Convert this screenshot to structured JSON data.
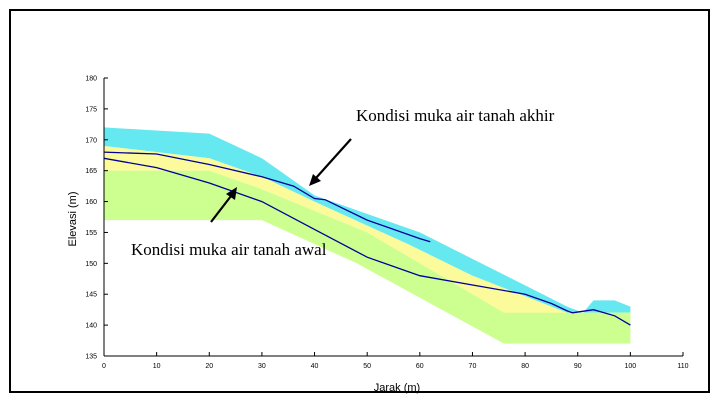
{
  "chart_data": {
    "type": "area",
    "xlabel": "Jarak (m)",
    "ylabel": "Elevasi (m)",
    "xlim": [
      0,
      110
    ],
    "ylim": [
      135,
      180
    ],
    "x_ticks": [
      0,
      10,
      20,
      30,
      40,
      50,
      60,
      70,
      80,
      90,
      100,
      110
    ],
    "y_ticks": [
      135,
      140,
      145,
      150,
      155,
      160,
      165,
      170,
      175,
      180
    ],
    "layers": [
      {
        "role": "cyan-surface-layer",
        "color": "#66e8f0",
        "upper": [
          [
            0,
            172
          ],
          [
            20,
            171
          ],
          [
            30,
            167
          ],
          [
            40,
            161
          ],
          [
            60,
            155
          ],
          [
            88,
            143
          ],
          [
            91,
            142
          ],
          [
            93,
            144
          ],
          [
            97,
            144
          ],
          [
            100,
            143
          ],
          [
            100,
            142
          ],
          [
            88,
            142
          ],
          [
            70,
            148
          ],
          [
            58,
            153
          ],
          [
            40,
            160
          ],
          [
            30,
            164
          ],
          [
            20,
            167
          ],
          [
            0,
            169
          ]
        ]
      },
      {
        "role": "yellow-layer",
        "color": "#fbfb9b",
        "upper": [
          [
            0,
            169
          ],
          [
            20,
            167
          ],
          [
            30,
            164
          ],
          [
            40,
            160
          ],
          [
            58,
            153
          ],
          [
            70,
            148
          ],
          [
            88,
            142
          ],
          [
            100,
            142
          ],
          [
            100,
            141
          ],
          [
            76,
            142
          ],
          [
            50,
            155
          ],
          [
            30,
            162
          ],
          [
            20,
            165
          ],
          [
            0,
            165
          ]
        ]
      },
      {
        "role": "green-layer",
        "color": "#ccff90",
        "upper": [
          [
            0,
            165
          ],
          [
            20,
            165
          ],
          [
            30,
            162
          ],
          [
            50,
            155
          ],
          [
            76,
            142
          ],
          [
            100,
            142
          ],
          [
            100,
            137
          ],
          [
            76,
            137
          ],
          [
            48,
            150
          ],
          [
            30,
            157
          ],
          [
            0,
            157
          ]
        ]
      }
    ],
    "series": [
      {
        "color": "#000099",
        "x": [
          0,
          10,
          20,
          30,
          36,
          40,
          42,
          50,
          60,
          62
        ],
        "y": [
          168,
          167.7,
          166,
          164,
          162.5,
          160.5,
          160.3,
          157,
          154,
          153.5
        ]
      },
      {
        "color": "#000099",
        "x": [
          0,
          10,
          20,
          30,
          40,
          50,
          60,
          70,
          80,
          85,
          88,
          89,
          93,
          97,
          100
        ],
        "y": [
          167,
          165.5,
          163,
          160,
          155.5,
          151,
          148,
          146.5,
          145,
          143.5,
          142.3,
          142,
          142.5,
          141.5,
          140
        ]
      }
    ],
    "annotations": [
      {
        "text": "Kondisi muka air tanah akhir",
        "points_to": [
          40.5,
          161.5
        ]
      },
      {
        "text": "Kondisi muka air tanah awal",
        "points_to": [
          25,
          163.5
        ]
      }
    ]
  }
}
